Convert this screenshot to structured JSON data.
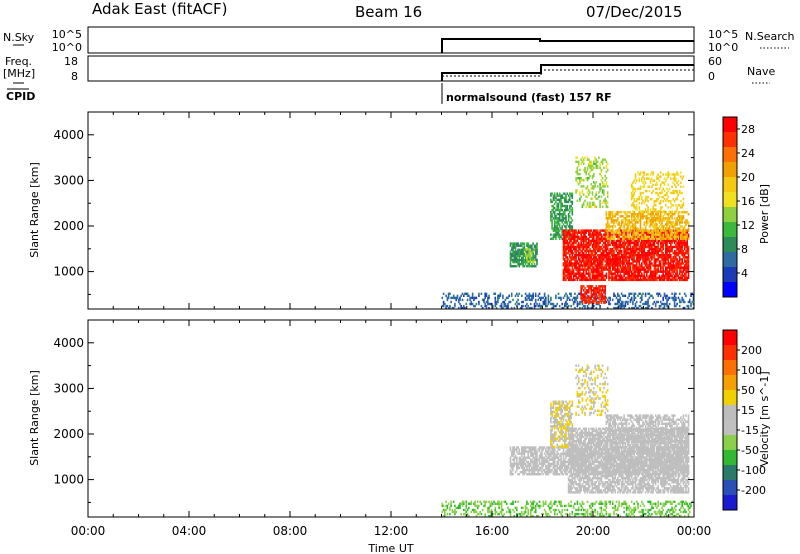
{
  "header": {
    "station": "Adak East (fitACF)",
    "beam": "Beam 16",
    "date": "07/Dec/2015"
  },
  "top_panels": {
    "nsky_label": "N.Sky",
    "nsky_ticks": [
      "10^5",
      "10^0"
    ],
    "nsearch_label": "N.Search",
    "nsearch_ticks": [
      "10^5",
      "10^0"
    ],
    "freq_label": "Freq.",
    "freq_unit": "[MHz]",
    "freq_ticks": [
      "18",
      "8"
    ],
    "nave_label": "Nave",
    "nave_ticks": [
      "60",
      "0"
    ],
    "cpid_label": "CPID",
    "cpid_text": "normalsound (fast) 157 RF"
  },
  "colors": {
    "power_scale": [
      "#0000ff",
      "#1a3ab8",
      "#2f6aa0",
      "#2f8a5a",
      "#3cb83c",
      "#8fd040",
      "#f0e020",
      "#f5c814",
      "#f0a000",
      "#ff7000",
      "#ff3000",
      "#ff0000"
    ],
    "velocity_scale": [
      "#1a1ad0",
      "#2a50b8",
      "#2a7a6a",
      "#33b833",
      "#8ad04a",
      "#c0c0c0",
      "#bdbdbd",
      "#f0d000",
      "#f5a000",
      "#ff7000",
      "#ff3000",
      "#ff0000"
    ]
  },
  "chart_data": [
    {
      "type": "heatmap",
      "panel": "power",
      "xlabel": "",
      "ylabel": "Slant Range [km]",
      "xlim": [
        0,
        24
      ],
      "ylim": [
        180,
        4500
      ],
      "y_ticks": [
        "1000",
        "2000",
        "3000",
        "4000"
      ],
      "colorbar": {
        "label": "Power [dB]",
        "ticks": [
          "4",
          "8",
          "12",
          "16",
          "20",
          "24",
          "28"
        ],
        "range": [
          0,
          30
        ]
      },
      "patches": [
        {
          "t0": 14.0,
          "t1": 24.0,
          "r0": 180,
          "r1": 500,
          "value": 6,
          "density": 0.35
        },
        {
          "t0": 16.7,
          "t1": 17.8,
          "r0": 1100,
          "r1": 1600,
          "value": 9,
          "density": 0.8
        },
        {
          "t0": 17.3,
          "t1": 17.7,
          "r0": 1200,
          "r1": 1500,
          "value": 14,
          "density": 0.6
        },
        {
          "t0": 18.3,
          "t1": 19.2,
          "r0": 1700,
          "r1": 2700,
          "value": 10,
          "density": 0.6
        },
        {
          "t0": 19.3,
          "t1": 20.6,
          "r0": 2400,
          "r1": 3500,
          "value": 14,
          "density": 0.3
        },
        {
          "t0": 18.8,
          "t1": 23.8,
          "r0": 800,
          "r1": 1900,
          "value": 28,
          "density": 0.8
        },
        {
          "t0": 19.5,
          "t1": 20.5,
          "r0": 300,
          "r1": 700,
          "value": 27,
          "density": 0.7
        },
        {
          "t0": 20.5,
          "t1": 23.8,
          "r0": 1700,
          "r1": 2300,
          "value": 20,
          "density": 0.6
        },
        {
          "t0": 21.5,
          "t1": 23.6,
          "r0": 2300,
          "r1": 3200,
          "value": 18,
          "density": 0.3
        }
      ]
    },
    {
      "type": "heatmap",
      "panel": "velocity",
      "xlabel": "Time UT",
      "ylabel": "Slant Range [km]",
      "xlim": [
        0,
        24
      ],
      "ylim": [
        180,
        4500
      ],
      "x_ticks": [
        "00:00",
        "04:00",
        "08:00",
        "12:00",
        "16:00",
        "20:00",
        "00:00"
      ],
      "y_ticks": [
        "1000",
        "2000",
        "3000",
        "4000"
      ],
      "colorbar": {
        "label": "Velocity [m s^-1]",
        "ticks": [
          "200",
          "100",
          "50",
          "15",
          "-15",
          "-50",
          "-100",
          "-200"
        ],
        "range": [
          -250,
          250
        ]
      },
      "patches": [
        {
          "t0": 14.0,
          "t1": 24.0,
          "r0": 180,
          "r1": 500,
          "value": -75,
          "density": 0.35
        },
        {
          "t0": 16.7,
          "t1": 23.8,
          "r0": 1100,
          "r1": 1700,
          "value": 0,
          "density": 0.7
        },
        {
          "t0": 18.3,
          "t1": 19.2,
          "r0": 1700,
          "r1": 2700,
          "value": 40,
          "density": 0.6
        },
        {
          "t0": 19.3,
          "t1": 20.6,
          "r0": 2400,
          "r1": 3500,
          "value": 40,
          "density": 0.3
        },
        {
          "t0": 19.0,
          "t1": 23.8,
          "r0": 700,
          "r1": 2100,
          "value": 0,
          "density": 0.7
        },
        {
          "t0": 20.5,
          "t1": 23.8,
          "r0": 1800,
          "r1": 2400,
          "value": 0,
          "density": 0.6
        }
      ]
    }
  ]
}
